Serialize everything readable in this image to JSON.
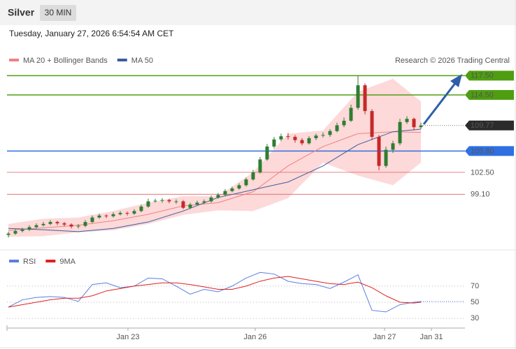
{
  "header": {
    "symbol": "Silver",
    "interval": "30 MIN",
    "timestamp": "Tuesday, January 27, 2026 6:54:54 AM CET"
  },
  "chart_data": [
    {
      "type": "candlestick",
      "credit": "Research © 2026 Trading Central",
      "up_color": "#2f7d32",
      "down_color": "#c62828",
      "open": [
        92.8,
        93.0,
        93.4,
        93.6,
        94.0,
        94.3,
        94.5,
        94.8,
        94.6,
        94.4,
        94.1,
        94.2,
        94.8,
        95.5,
        95.8,
        95.7,
        96.0,
        96.2,
        96.1,
        96.5,
        97.2,
        98.0,
        98.1,
        98.2,
        98.0,
        98.0,
        97.0,
        97.5,
        97.8,
        98.0,
        98.6,
        99.0,
        99.6,
        100.0,
        100.5,
        101.4,
        102.5,
        104.5,
        106.5,
        107.6,
        108.1,
        108.0,
        107.5,
        107.0,
        107.8,
        108.2,
        108.3,
        108.9,
        109.8,
        110.5,
        112.5,
        116.0,
        112.0,
        108.0,
        103.5,
        106.0,
        107.0,
        110.3,
        110.8,
        109.5
      ],
      "high": [
        93.3,
        93.7,
        93.9,
        94.3,
        94.6,
        94.8,
        95.1,
        95.0,
        94.8,
        94.6,
        94.5,
        95.1,
        95.8,
        96.1,
        96.0,
        96.3,
        96.5,
        96.4,
        96.8,
        97.5,
        98.4,
        98.4,
        98.5,
        98.4,
        98.3,
        98.2,
        97.8,
        98.1,
        98.3,
        98.9,
        99.3,
        99.9,
        100.3,
        100.8,
        101.7,
        102.9,
        104.9,
        106.9,
        108.0,
        108.5,
        108.6,
        108.3,
        107.8,
        108.1,
        108.5,
        108.7,
        109.2,
        110.2,
        111.0,
        113.0,
        117.5,
        116.3,
        112.3,
        108.3,
        106.5,
        107.4,
        110.8,
        111.2,
        111.0,
        110.2
      ],
      "low": [
        92.4,
        92.8,
        93.2,
        93.4,
        93.8,
        94.1,
        94.3,
        94.3,
        94.1,
        93.8,
        93.8,
        94.0,
        94.6,
        95.3,
        95.4,
        95.5,
        95.8,
        95.8,
        95.9,
        96.3,
        97.0,
        97.8,
        97.8,
        97.7,
        97.6,
        96.8,
        96.8,
        97.3,
        97.6,
        97.8,
        98.4,
        98.8,
        99.4,
        99.8,
        100.3,
        101.2,
        102.3,
        104.3,
        106.2,
        107.3,
        107.6,
        107.1,
        106.7,
        106.8,
        107.5,
        107.9,
        108.0,
        108.7,
        109.5,
        110.3,
        112.2,
        111.5,
        107.5,
        102.8,
        103.2,
        105.5,
        106.7,
        110.0,
        109.0,
        109.2
      ],
      "close": [
        93.0,
        93.4,
        93.6,
        94.0,
        94.3,
        94.5,
        94.8,
        94.6,
        94.4,
        94.1,
        94.2,
        94.8,
        95.5,
        95.8,
        95.7,
        96.0,
        96.2,
        96.1,
        96.5,
        97.2,
        98.0,
        98.1,
        98.2,
        98.0,
        98.0,
        97.0,
        97.5,
        97.8,
        98.0,
        98.6,
        99.0,
        99.6,
        100.0,
        100.5,
        101.4,
        102.5,
        104.5,
        106.5,
        107.6,
        108.1,
        108.0,
        107.5,
        107.0,
        107.8,
        108.2,
        108.3,
        108.9,
        109.8,
        110.5,
        112.5,
        116.0,
        112.0,
        108.0,
        103.5,
        106.0,
        107.0,
        110.3,
        110.8,
        109.5,
        109.77
      ],
      "overlays": [
        {
          "name": "MA 20 + Bollinger Bands",
          "color": "#f08080",
          "band_color": "#fdd9d9",
          "x": [
            0,
            5,
            10,
            15,
            20,
            25,
            30,
            35,
            40,
            45,
            50,
            55,
            59
          ],
          "values": [
            93.5,
            93.9,
            94.3,
            95.0,
            96.0,
            97.3,
            97.8,
            99.5,
            103.5,
            106.5,
            108.5,
            108.8,
            108.7
          ],
          "upper": [
            94.5,
            95.3,
            95.5,
            96.5,
            97.8,
            98.8,
            98.8,
            102.5,
            108.5,
            109.0,
            115.0,
            117.0,
            113.5
          ],
          "lower": [
            92.5,
            92.6,
            93.2,
            93.5,
            94.5,
            95.9,
            96.6,
            96.5,
            98.5,
            104.0,
            102.0,
            100.5,
            104.0
          ]
        },
        {
          "name": "MA 50",
          "color": "#3a5e9c",
          "x": [
            0,
            5,
            10,
            15,
            20,
            25,
            30,
            35,
            40,
            45,
            50,
            55,
            59
          ],
          "values": [
            93.8,
            93.6,
            93.3,
            93.8,
            94.8,
            96.5,
            98.6,
            99.8,
            101.0,
            103.5,
            106.8,
            108.8,
            109.2
          ]
        }
      ],
      "levels": [
        {
          "value": 117.5,
          "label": "117.50",
          "color": "#4f9e12",
          "boxed": true
        },
        {
          "value": 114.5,
          "label": "114.50",
          "color": "#4f9e12",
          "boxed": true
        },
        {
          "value": 105.8,
          "label": "105.80",
          "color": "#2f6fe0",
          "boxed": true
        },
        {
          "value": 102.5,
          "label": "102.50",
          "color": "#e06060",
          "boxed": false
        },
        {
          "value": 99.1,
          "label": "99.10",
          "color": "#e06060",
          "boxed": false
        }
      ],
      "last_price": {
        "value": 109.77,
        "label": "109.77",
        "color": "#2b2b2b"
      },
      "xlim": [
        0,
        65.3
      ],
      "ylim": [
        90.8,
        118.4
      ]
    },
    {
      "type": "line",
      "series": [
        {
          "name": "RSI",
          "color": "#5a7fe0",
          "x": [
            0,
            2,
            4,
            6,
            8,
            10,
            12,
            14,
            16,
            18,
            20,
            22,
            24,
            26,
            28,
            30,
            32,
            34,
            36,
            38,
            40,
            42,
            44,
            46,
            48,
            50,
            52,
            54,
            56,
            58,
            59
          ],
          "values": [
            44,
            53,
            56,
            57,
            56,
            51,
            72,
            74,
            68,
            70,
            80,
            79,
            70,
            60,
            66,
            63,
            70,
            80,
            87,
            85,
            76,
            73,
            72,
            67,
            75,
            84,
            40,
            38,
            47,
            50,
            51
          ]
        },
        {
          "name": "9MA",
          "color": "#e02020",
          "x": [
            0,
            2,
            4,
            6,
            8,
            10,
            12,
            14,
            16,
            18,
            20,
            22,
            24,
            26,
            28,
            30,
            32,
            34,
            36,
            38,
            40,
            42,
            44,
            46,
            48,
            50,
            52,
            54,
            56,
            58,
            59
          ],
          "values": [
            44,
            47,
            50,
            53,
            55,
            55,
            58,
            64,
            67,
            70,
            72,
            74,
            74,
            72,
            69,
            66,
            66,
            70,
            76,
            80,
            82,
            79,
            76,
            73,
            72,
            75,
            68,
            58,
            50,
            49,
            50
          ]
        }
      ],
      "xlim": [
        0,
        65.3
      ],
      "ylim": [
        18,
        95
      ],
      "yticks": [
        30,
        50,
        70
      ],
      "xticks": [
        {
          "value": 17.1,
          "label": "Jan 23"
        },
        {
          "value": 35.3,
          "label": "Jan 26"
        },
        {
          "value": 53.8,
          "label": "Jan 27"
        },
        {
          "value": 60.5,
          "label": "Jan 31"
        }
      ]
    }
  ]
}
